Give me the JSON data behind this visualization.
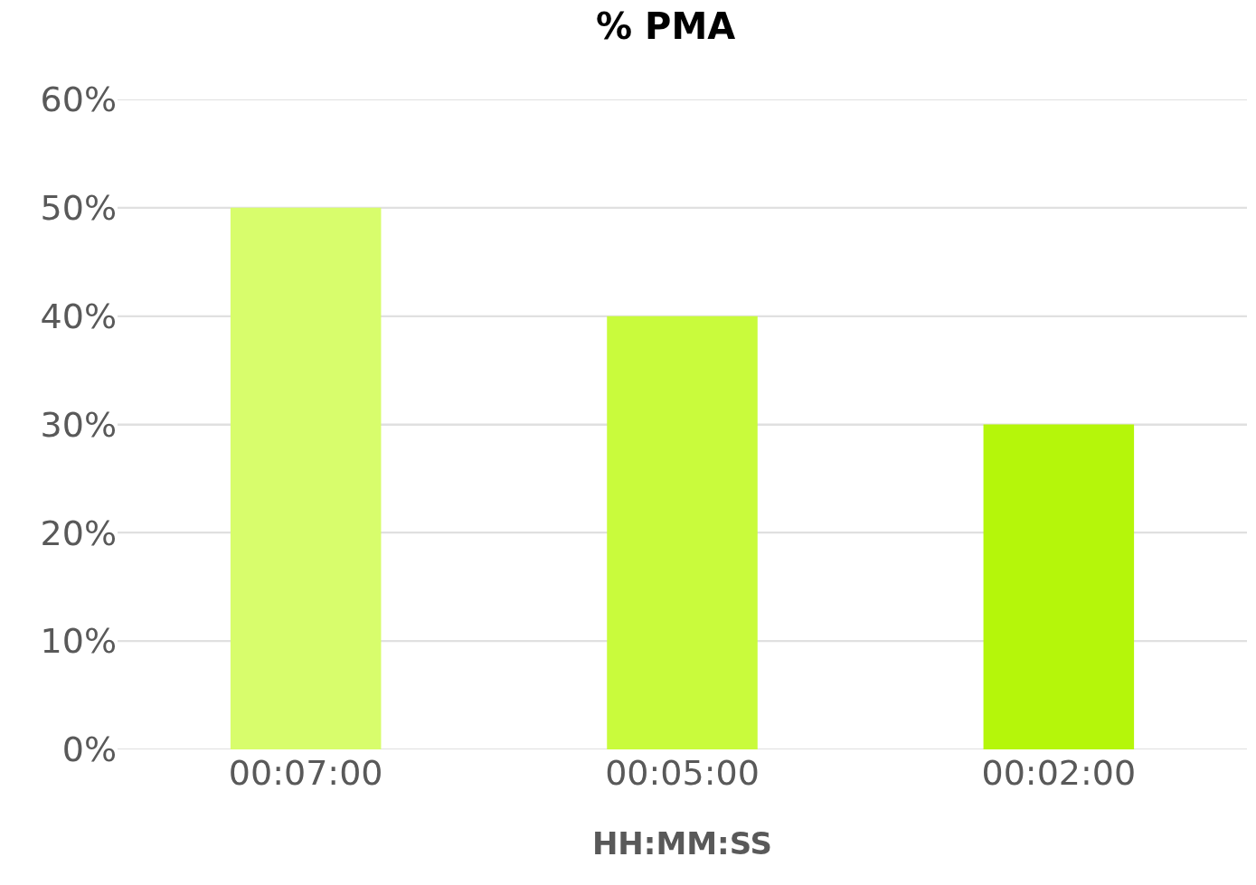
{
  "chart_data": {
    "type": "bar",
    "title": "% PMA",
    "xlabel": "HH:MM:SS",
    "categories": [
      "00:07:00",
      "00:05:00",
      "00:02:00"
    ],
    "values": [
      50,
      40,
      30
    ],
    "colors": [
      "#d8fd6c",
      "#c9fb3c",
      "#b5f60a"
    ],
    "ylim": [
      0,
      60
    ],
    "yticks": [
      {
        "value": 0,
        "label": "0%"
      },
      {
        "value": 10,
        "label": "10%"
      },
      {
        "value": 20,
        "label": "20%"
      },
      {
        "value": 30,
        "label": "30%"
      },
      {
        "value": 40,
        "label": "40%"
      },
      {
        "value": 50,
        "label": "50%"
      },
      {
        "value": 60,
        "label": "60%"
      }
    ],
    "grid": "y"
  }
}
